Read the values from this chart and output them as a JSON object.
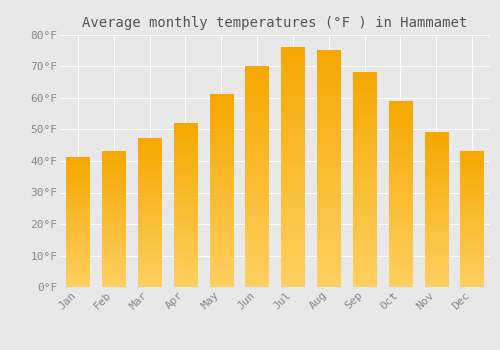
{
  "title": "Average monthly temperatures (°F ) in Hammamet",
  "months": [
    "Jan",
    "Feb",
    "Mar",
    "Apr",
    "May",
    "Jun",
    "Jul",
    "Aug",
    "Sep",
    "Oct",
    "Nov",
    "Dec"
  ],
  "values": [
    41,
    43,
    47,
    52,
    61,
    70,
    76,
    75,
    68,
    59,
    49,
    43
  ],
  "bar_color_top": "#F5A800",
  "bar_color_bottom": "#FFD060",
  "ylim": [
    0,
    80
  ],
  "yticks": [
    0,
    10,
    20,
    30,
    40,
    50,
    60,
    70,
    80
  ],
  "ytick_labels": [
    "0°F",
    "10°F",
    "20°F",
    "30°F",
    "40°F",
    "50°F",
    "60°F",
    "70°F",
    "80°F"
  ],
  "background_color": "#e8e8e8",
  "grid_color": "#ffffff",
  "title_fontsize": 10,
  "tick_fontsize": 8,
  "bar_width": 0.65
}
